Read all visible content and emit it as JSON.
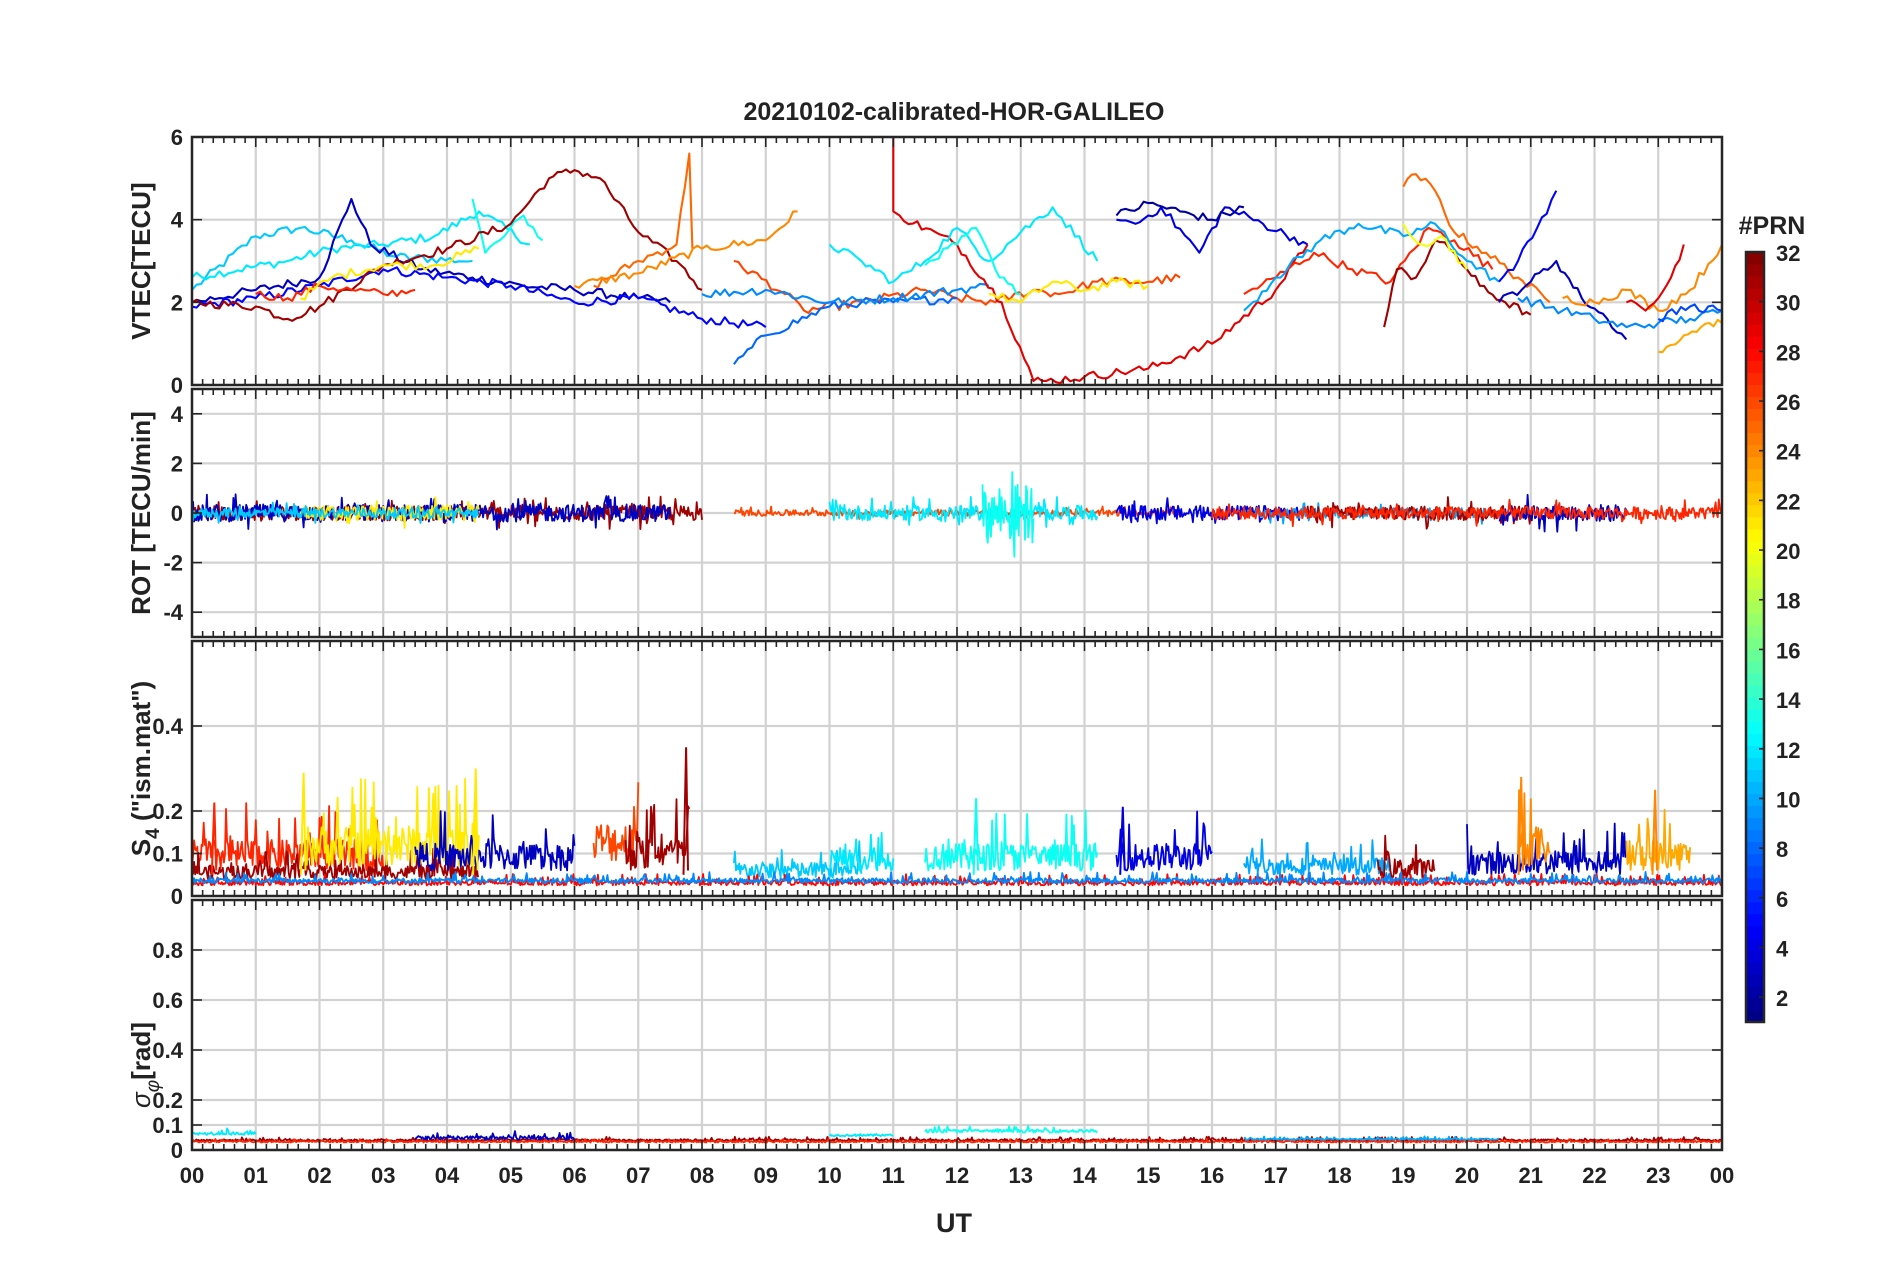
{
  "chart_data": {
    "type": "line",
    "title": "20210102-calibrated-HOR-GALILEO",
    "xlabel": "UT",
    "x_tick_labels": [
      "00",
      "01",
      "02",
      "03",
      "04",
      "05",
      "06",
      "07",
      "08",
      "09",
      "10",
      "11",
      "12",
      "13",
      "14",
      "15",
      "16",
      "17",
      "18",
      "19",
      "20",
      "21",
      "22",
      "23",
      "00"
    ],
    "xlim": [
      0,
      24
    ],
    "colorbar": {
      "label": "#PRN",
      "range": [
        1,
        32
      ],
      "tick_labels": [
        "2",
        "4",
        "6",
        "8",
        "10",
        "12",
        "14",
        "16",
        "18",
        "20",
        "22",
        "24",
        "26",
        "28",
        "30",
        "32"
      ],
      "tick_values": [
        2,
        4,
        6,
        8,
        10,
        12,
        14,
        16,
        18,
        20,
        22,
        24,
        26,
        28,
        30,
        32
      ],
      "colormap": "jet"
    },
    "panels": [
      {
        "id": "vtec",
        "ylabel": "VTEC[TECU]",
        "ylim": [
          0,
          6
        ],
        "y_ticks": [
          0,
          2,
          4,
          6
        ],
        "y_tick_labels": [
          "0",
          "2",
          "4",
          "6"
        ],
        "series": [
          {
            "prn": 11,
            "x": [
              0,
              1,
              1.7,
              2.5,
              3.2,
              4.4
            ],
            "y": [
              2.3,
              3.6,
              3.8,
              3.5,
              3.1,
              3.0
            ]
          },
          {
            "prn": 12,
            "x": [
              0,
              1.5,
              2.2,
              3.0,
              3.8,
              4.5,
              5.3
            ],
            "y": [
              2.6,
              3.0,
              3.3,
              3.4,
              3.6,
              4.2,
              3.4
            ]
          },
          {
            "prn": 13,
            "x": [
              4.4,
              4.6,
              4.9,
              5.2,
              5.5
            ],
            "y": [
              4.5,
              3.2,
              3.6,
              4.1,
              3.5
            ]
          },
          {
            "prn": 3,
            "x": [
              0,
              1,
              2,
              2.5,
              2.8,
              3.6,
              4.4,
              5.2,
              6.0,
              7.0,
              7.5
            ],
            "y": [
              2.0,
              2.3,
              2.6,
              4.5,
              3.4,
              2.8,
              2.6,
              2.4,
              2.3,
              2.1,
              2.0
            ]
          },
          {
            "prn": 5,
            "x": [
              0,
              1,
              2,
              3,
              4,
              5,
              6,
              7,
              8,
              9
            ],
            "y": [
              1.9,
              2.1,
              2.4,
              2.8,
              2.6,
              2.4,
              2.0,
              2.1,
              1.6,
              1.4
            ]
          },
          {
            "prn": 31,
            "x": [
              0,
              1,
              1.5,
              2,
              3,
              4,
              5,
              5.6,
              6,
              6.4,
              7,
              7.6,
              8.0
            ],
            "y": [
              2.0,
              1.9,
              1.6,
              1.9,
              2.9,
              3.3,
              3.9,
              5.0,
              5.2,
              5.0,
              3.7,
              3.0,
              2.3
            ]
          },
          {
            "prn": 27,
            "x": [
              1,
              1.5,
              2,
              2.5,
              3,
              3.5
            ],
            "y": [
              2.2,
              2.1,
              2.4,
              2.3,
              2.2,
              2.3
            ]
          },
          {
            "prn": 21,
            "x": [
              1.7,
              2.2,
              3,
              3.8,
              4.5
            ],
            "y": [
              2.1,
              2.6,
              2.9,
              2.9,
              3.3
            ]
          },
          {
            "prn": 25,
            "x": [
              6.3,
              7,
              7.6,
              7.8,
              7.8,
              7.85
            ],
            "y": [
              2.4,
              3.0,
              3.4,
              5.6,
              5.6,
              3.3
            ]
          },
          {
            "prn": 24,
            "x": [
              6,
              7,
              8,
              9,
              9.5
            ],
            "y": [
              2.4,
              2.7,
              3.3,
              3.5,
              4.2
            ]
          },
          {
            "prn": 26,
            "x": [
              8.5,
              9.3,
              9.6,
              10.5,
              11.5,
              12.0,
              12.6,
              13.2,
              13.6,
              14.2,
              15.0,
              15.5
            ],
            "y": [
              3.0,
              2.2,
              1.8,
              2.0,
              2.3,
              2.1,
              2.0,
              2.3,
              2.2,
              2.5,
              2.5,
              2.6
            ]
          },
          {
            "prn": 8,
            "x": [
              8.5,
              9,
              10,
              10.5,
              11,
              12
            ],
            "y": [
              0.5,
              1.2,
              1.9,
              2.0,
              2.0,
              2.1
            ]
          },
          {
            "prn": 9,
            "x": [
              8,
              9,
              10,
              11,
              12,
              12.5
            ],
            "y": [
              2.2,
              2.3,
              2.0,
              2.1,
              2.3,
              2.4
            ]
          },
          {
            "prn": 29,
            "x": [
              11.0,
              11.0,
              11.1,
              12.0,
              12.7,
              13.2,
              13.4,
              14.0,
              15.0,
              16.0,
              17.0,
              17.5
            ],
            "y": [
              6.0,
              4.2,
              4.1,
              3.4,
              2.0,
              0.1,
              0.1,
              0.2,
              0.4,
              1.0,
              2.3,
              3.4
            ]
          },
          {
            "prn": 12,
            "x": [
              10,
              10.5,
              11,
              11.5,
              12,
              12.5,
              13,
              13.5,
              14.2
            ],
            "y": [
              3.4,
              3.0,
              2.5,
              3.0,
              3.8,
              3.0,
              3.7,
              4.3,
              3.0
            ]
          },
          {
            "prn": 13,
            "x": [
              11.5,
              12,
              12.3,
              12.6,
              13.0
            ],
            "y": [
              2.9,
              3.4,
              3.8,
              2.8,
              2.2
            ]
          },
          {
            "prn": 21,
            "x": [
              12.5,
              13.0,
              13.5,
              14.0,
              14.5,
              15.0
            ],
            "y": [
              2.2,
              2.0,
              2.5,
              2.3,
              2.5,
              2.4
            ]
          },
          {
            "prn": 4,
            "x": [
              14.5,
              14.8,
              15.2,
              15.8,
              16.2,
              16.8,
              17.5
            ],
            "y": [
              4.0,
              3.9,
              4.3,
              3.2,
              4.3,
              3.9,
              3.4
            ]
          },
          {
            "prn": 2,
            "x": [
              14.5,
              15,
              15.5,
              16,
              16.5
            ],
            "y": [
              4.1,
              4.4,
              4.2,
              4.0,
              4.3
            ]
          },
          {
            "prn": 27,
            "x": [
              16.5,
              17,
              17.6,
              18.2,
              18.8,
              19.4,
              19.8,
              20.4
            ],
            "y": [
              2.2,
              2.6,
              3.2,
              2.8,
              2.5,
              3.8,
              3.5,
              2.8
            ]
          },
          {
            "prn": 10,
            "x": [
              16.5,
              17.0,
              17.7,
              18.3,
              19.0,
              19.5,
              20.0,
              20.5
            ],
            "y": [
              1.8,
              2.6,
              3.5,
              3.9,
              3.6,
              3.9,
              3.0,
              2.5
            ]
          },
          {
            "prn": 31,
            "x": [
              18.7,
              18.9,
              19.2,
              19.5,
              19.8,
              20.2,
              20.6,
              21.0
            ],
            "y": [
              1.4,
              2.8,
              2.6,
              3.5,
              3.2,
              2.4,
              2.0,
              1.7
            ]
          },
          {
            "prn": 25,
            "x": [
              19.0,
              19.2,
              19.5,
              19.8,
              20.3,
              20.8,
              21.3
            ],
            "y": [
              4.8,
              5.1,
              4.7,
              3.7,
              3.2,
              2.6,
              2.0
            ]
          },
          {
            "prn": 20,
            "x": [
              19.0,
              19.3,
              19.6,
              20.0
            ],
            "y": [
              3.9,
              3.4,
              3.6,
              2.8
            ]
          },
          {
            "prn": 3,
            "x": [
              20.5,
              21.0,
              21.4,
              21.8,
              22.2,
              22.5
            ],
            "y": [
              2.0,
              2.5,
              3.0,
              2.1,
              1.6,
              1.1
            ]
          },
          {
            "prn": 5,
            "x": [
              20.5,
              20.8,
              21.1,
              21.4
            ],
            "y": [
              2.5,
              3.0,
              3.8,
              4.7
            ]
          },
          {
            "prn": 9,
            "x": [
              20.8,
              21.5,
              22.0,
              22.5,
              23.0,
              23.5,
              24.0
            ],
            "y": [
              2.1,
              1.8,
              1.6,
              1.4,
              1.5,
              1.6,
              1.8
            ]
          },
          {
            "prn": 24,
            "x": [
              21.5,
              22.0,
              22.5,
              23.0,
              23.5,
              24.0
            ],
            "y": [
              2.1,
              2.0,
              2.3,
              1.8,
              2.3,
              3.4
            ]
          },
          {
            "prn": 29,
            "x": [
              22.5,
              22.8,
              23.0,
              23.2,
              23.4
            ],
            "y": [
              2.0,
              1.8,
              2.1,
              2.6,
              3.4
            ]
          },
          {
            "prn": 23,
            "x": [
              23.0,
              23.4,
              23.8,
              24.0
            ],
            "y": [
              0.8,
              1.2,
              1.5,
              1.5
            ]
          },
          {
            "prn": 7,
            "x": [
              23.0,
              23.5,
              24.0
            ],
            "y": [
              1.6,
              1.9,
              1.8
            ]
          }
        ]
      },
      {
        "id": "rot",
        "ylabel": "ROT [TECU/min]",
        "ylim": [
          -5,
          5
        ],
        "y_ticks": [
          -4,
          -2,
          0,
          2,
          4
        ],
        "y_tick_labels": [
          "-4",
          "-2",
          "0",
          "2",
          "4"
        ],
        "noise_series": [
          {
            "prn": 31,
            "x0": 0,
            "x1": 8,
            "amp": 0.3
          },
          {
            "prn": 3,
            "x0": 0,
            "x1": 7.5,
            "amp": 0.35
          },
          {
            "prn": 21,
            "x0": 1.7,
            "x1": 4.5,
            "amp": 0.3
          },
          {
            "prn": 11,
            "x0": 0,
            "x1": 4.5,
            "amp": 0.2
          },
          {
            "prn": 26,
            "x0": 8.5,
            "x1": 15.5,
            "amp": 0.12
          },
          {
            "prn": 12,
            "x0": 10,
            "x1": 14.2,
            "amp": 0.3
          },
          {
            "prn": 13,
            "x0": 12.4,
            "x1": 13.2,
            "amp": 1.2
          },
          {
            "prn": 4,
            "x0": 14.5,
            "x1": 17.5,
            "amp": 0.3
          },
          {
            "prn": 10,
            "x0": 16.5,
            "x1": 20.5,
            "amp": 0.2
          },
          {
            "prn": 31,
            "x0": 17.5,
            "x1": 21,
            "amp": 0.3
          },
          {
            "prn": 3,
            "x0": 20.5,
            "x1": 22.5,
            "amp": 0.35
          },
          {
            "prn": 27,
            "x0": 16,
            "x1": 24,
            "amp": 0.25
          }
        ]
      },
      {
        "id": "s4",
        "ylabel": "S4 (\"ism.mat\")",
        "ylim": [
          0,
          0.6
        ],
        "y_ticks": [
          0,
          0.1,
          0.2,
          0.4
        ],
        "y_tick_labels": [
          "0",
          "0.1",
          "0.2",
          "0.4"
        ],
        "noise_series": [
          {
            "prn": 27,
            "x0": 0,
            "x1": 3.0,
            "base": 0.06,
            "amp": 0.09
          },
          {
            "prn": 31,
            "x0": 0,
            "x1": 4.5,
            "base": 0.04,
            "amp": 0.04
          },
          {
            "prn": 21,
            "x0": 1.8,
            "x1": 4.5,
            "base": 0.07,
            "amp": 0.12
          },
          {
            "prn": 3,
            "x0": 3.5,
            "x1": 6.0,
            "base": 0.06,
            "amp": 0.08
          },
          {
            "prn": 26,
            "x0": 6.3,
            "x1": 7.0,
            "base": 0.08,
            "amp": 0.12
          },
          {
            "prn": 31,
            "x0": 6.8,
            "x1": 7.8,
            "base": 0.06,
            "amp": 0.1
          },
          {
            "prn": 11,
            "x0": 8.5,
            "x1": 10.5,
            "base": 0.04,
            "amp": 0.05
          },
          {
            "prn": 12,
            "x0": 10.0,
            "x1": 11.0,
            "base": 0.06,
            "amp": 0.06
          },
          {
            "prn": 13,
            "x0": 11.5,
            "x1": 14.2,
            "base": 0.06,
            "amp": 0.08
          },
          {
            "prn": 4,
            "x0": 14.5,
            "x1": 16.0,
            "base": 0.06,
            "amp": 0.08
          },
          {
            "prn": 10,
            "x0": 16.5,
            "x1": 18.8,
            "base": 0.05,
            "amp": 0.05
          },
          {
            "prn": 31,
            "x0": 18.6,
            "x1": 19.5,
            "base": 0.04,
            "amp": 0.06
          },
          {
            "prn": 3,
            "x0": 20.0,
            "x1": 22.5,
            "base": 0.05,
            "amp": 0.07
          },
          {
            "prn": 24,
            "x0": 20.8,
            "x1": 21.3,
            "base": 0.07,
            "amp": 0.12
          },
          {
            "prn": 23,
            "x0": 22.5,
            "x1": 23.5,
            "base": 0.06,
            "amp": 0.09
          },
          {
            "prn": 28,
            "x0": 0,
            "x1": 24,
            "base": 0.025,
            "amp": 0.015
          },
          {
            "prn": 9,
            "x0": 0,
            "x1": 24,
            "base": 0.03,
            "amp": 0.015
          }
        ],
        "peaks": [
          {
            "prn": 21,
            "x": 1.75,
            "y": 0.29
          },
          {
            "prn": 21,
            "x": 4.45,
            "y": 0.3
          },
          {
            "prn": 31,
            "x": 7.75,
            "y": 0.35
          },
          {
            "prn": 24,
            "x": 20.85,
            "y": 0.28
          },
          {
            "prn": 24,
            "x": 22.95,
            "y": 0.25
          },
          {
            "prn": 13,
            "x": 12.3,
            "y": 0.23
          },
          {
            "prn": 4,
            "x": 14.6,
            "y": 0.21
          },
          {
            "prn": 27,
            "x": 0.35,
            "y": 0.22
          }
        ]
      },
      {
        "id": "sigphi",
        "ylabel": "σφ[rad]",
        "ylim": [
          0,
          1
        ],
        "y_ticks": [
          0,
          0.1,
          0.2,
          0.4,
          0.6,
          0.8
        ],
        "y_tick_labels": [
          "0",
          "0.1",
          "0.2",
          "0.4",
          "0.6",
          "0.8"
        ],
        "noise_series": [
          {
            "prn": 12,
            "x0": 0,
            "x1": 1.0,
            "base": 0.06,
            "amp": 0.015
          },
          {
            "prn": 31,
            "x0": 0,
            "x1": 24,
            "base": 0.035,
            "amp": 0.01
          },
          {
            "prn": 3,
            "x0": 3.5,
            "x1": 6.0,
            "base": 0.04,
            "amp": 0.02
          },
          {
            "prn": 12,
            "x0": 10.0,
            "x1": 11.0,
            "base": 0.055,
            "amp": 0.01
          },
          {
            "prn": 13,
            "x0": 11.5,
            "x1": 14.2,
            "base": 0.07,
            "amp": 0.015
          },
          {
            "prn": 27,
            "x0": 0,
            "x1": 24,
            "base": 0.03,
            "amp": 0.008
          },
          {
            "prn": 10,
            "x0": 16.5,
            "x1": 20.5,
            "base": 0.04,
            "amp": 0.008
          }
        ]
      }
    ]
  }
}
